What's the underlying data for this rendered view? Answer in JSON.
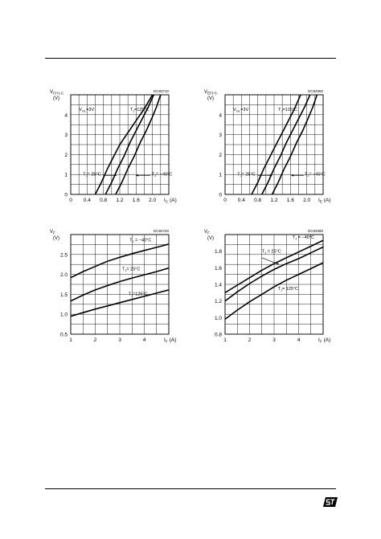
{
  "brand": {
    "logo": "ST"
  },
  "chart_data": [
    {
      "type": "line",
      "id": "GC82710",
      "title": "",
      "ylabel_lines": [
        "V",
        "(V)"
      ],
      "ylabel_sub": "F(+)-C",
      "xlabel": "I",
      "xlabel_sub": "C",
      "xunit": "(A)",
      "xlim": [
        0,
        2.4
      ],
      "ylim": [
        0,
        5
      ],
      "xticks": [
        0,
        0.4,
        0.8,
        1.2,
        1.6,
        2.0
      ],
      "xticklabels": [
        "0",
        "0.4",
        "0.8",
        "1.2",
        "1.6",
        "2.0"
      ],
      "yticks": [
        0,
        1,
        2,
        3,
        4
      ],
      "yticklabels": [
        "0",
        "1",
        "2",
        "3",
        "4"
      ],
      "grid": true,
      "annotations": [
        {
          "id": "cond",
          "text": "V",
          "sub": "GL",
          "after": "=3V",
          "x": 0.2,
          "y": 4.2
        },
        {
          "id": "t125",
          "text": "T",
          "sub": "J",
          "after": "=125°C",
          "x": 1.45,
          "y": 4.2
        },
        {
          "id": "t25",
          "text": "T",
          "sub": "J",
          "after": "= 25°C",
          "x": 0.3,
          "y": 0.95
        },
        {
          "id": "tm40",
          "text": "T",
          "sub": "J",
          "after": "= −40°C",
          "x": 1.98,
          "y": 0.95
        }
      ],
      "series": [
        {
          "name": "T_J = 125°C",
          "x": [
            0.6,
            0.75,
            0.9,
            1.05,
            1.2,
            1.4,
            1.6,
            1.8,
            2.0
          ],
          "y": [
            0,
            0.6,
            1.3,
            1.9,
            2.5,
            3.1,
            3.7,
            4.3,
            5.0
          ]
        },
        {
          "name": "T_J = 25°C",
          "x": [
            0.85,
            1.0,
            1.15,
            1.3,
            1.45,
            1.6,
            1.75,
            1.9,
            2.03
          ],
          "y": [
            0,
            0.6,
            1.3,
            1.9,
            2.6,
            3.2,
            3.8,
            4.4,
            5.0
          ]
        },
        {
          "name": "T_J = −40°C",
          "x": [
            1.1,
            1.25,
            1.4,
            1.55,
            1.7,
            1.85,
            2.0,
            2.1,
            2.2
          ],
          "y": [
            0,
            0.6,
            1.3,
            1.9,
            2.6,
            3.2,
            3.9,
            4.4,
            5.0
          ]
        }
      ],
      "leaders": [
        {
          "from": [
            0.8,
            0.95
          ],
          "to": [
            1.12,
            0.95
          ]
        },
        {
          "from": [
            1.95,
            0.95
          ],
          "to": [
            1.6,
            0.95
          ]
        }
      ]
    },
    {
      "type": "line",
      "id": "GC83360",
      "title": "",
      "ylabel_lines": [
        "V",
        "(V)"
      ],
      "ylabel_sub": "EF(+)-",
      "xlabel": "I",
      "xlabel_sub": "E",
      "xunit": "(A)",
      "xlim": [
        0,
        2.4
      ],
      "ylim": [
        0,
        5
      ],
      "xticks": [
        0,
        0.4,
        0.8,
        1.2,
        1.6,
        2.0
      ],
      "xticklabels": [
        "0",
        "0.4",
        "0.8",
        "1.2",
        "1.6",
        "2.0"
      ],
      "yticks": [
        0,
        1,
        2,
        3,
        4
      ],
      "yticklabels": [
        "0",
        "1",
        "2",
        "3",
        "4"
      ],
      "grid": true,
      "annotations": [
        {
          "id": "cond",
          "text": "V",
          "sub": "GL",
          "after": "=3V",
          "x": 0.2,
          "y": 4.2
        },
        {
          "id": "t125",
          "text": "T",
          "sub": "J",
          "after": "=125°C",
          "x": 1.3,
          "y": 4.2
        },
        {
          "id": "t25",
          "text": "T",
          "sub": "J",
          "after": "= 25°C",
          "x": 0.3,
          "y": 0.95
        },
        {
          "id": "tm40",
          "text": "T",
          "sub": "J",
          "after": "= −40°C",
          "x": 1.95,
          "y": 0.95
        }
      ],
      "series": [
        {
          "name": "T_J = 125°C",
          "x": [
            0.65,
            0.8,
            0.95,
            1.1,
            1.25,
            1.4,
            1.55,
            1.7,
            1.85
          ],
          "y": [
            0,
            0.6,
            1.3,
            1.9,
            2.5,
            3.1,
            3.7,
            4.3,
            5.0
          ]
        },
        {
          "name": "T_J = 25°C",
          "x": [
            0.9,
            1.05,
            1.2,
            1.35,
            1.5,
            1.65,
            1.8,
            1.95,
            2.08
          ],
          "y": [
            0,
            0.6,
            1.3,
            1.9,
            2.6,
            3.2,
            3.8,
            4.4,
            5.0
          ]
        },
        {
          "name": "T_J = −40°C",
          "x": [
            1.15,
            1.3,
            1.45,
            1.6,
            1.75,
            1.9,
            2.05,
            2.15,
            2.25
          ],
          "y": [
            0,
            0.6,
            1.3,
            1.9,
            2.6,
            3.2,
            3.9,
            4.4,
            5.0
          ]
        }
      ],
      "leaders": [
        {
          "from": [
            0.8,
            0.95
          ],
          "to": [
            1.15,
            0.95
          ]
        },
        {
          "from": [
            1.93,
            0.95
          ],
          "to": [
            1.62,
            0.95
          ]
        }
      ]
    },
    {
      "type": "line",
      "id": "GC82720",
      "title": "",
      "ylabel_lines": [
        "V",
        "(V)"
      ],
      "ylabel_sub": "F",
      "xlabel": "I",
      "xlabel_sub": "F",
      "xunit": "(A)",
      "xlim": [
        1,
        5
      ],
      "ylim": [
        0.5,
        3.0
      ],
      "xticks": [
        1,
        2,
        3,
        4
      ],
      "xticklabels": [
        "1",
        "2",
        "3",
        "4"
      ],
      "yticks": [
        0.5,
        1.0,
        1.5,
        2.0,
        2.5
      ],
      "yticklabels": [
        "0.5",
        "1.0",
        "1.5",
        "2.0",
        "2.5"
      ],
      "grid": true,
      "annotations": [
        {
          "id": "tm40",
          "text": "T",
          "sub": "J",
          "after": " = −40°C",
          "x": 3.4,
          "y": 2.83
        },
        {
          "id": "t25",
          "text": "T",
          "sub": "J",
          "after": "= 25°C",
          "x": 3.1,
          "y": 2.1
        },
        {
          "id": "t125",
          "text": "T",
          "sub": "J",
          "after": "=125°C",
          "x": 3.35,
          "y": 1.48
        }
      ],
      "series": [
        {
          "name": "T_J = −40°C",
          "x": [
            1,
            1.5,
            2,
            2.5,
            3,
            3.5,
            4,
            4.5,
            5
          ],
          "y": [
            1.92,
            2.07,
            2.2,
            2.33,
            2.43,
            2.52,
            2.6,
            2.68,
            2.76
          ]
        },
        {
          "name": "T_J = 25°C",
          "x": [
            1,
            1.5,
            2,
            2.5,
            3,
            3.5,
            4,
            4.5,
            5
          ],
          "y": [
            1.33,
            1.48,
            1.61,
            1.72,
            1.82,
            1.91,
            1.99,
            2.07,
            2.16
          ]
        },
        {
          "name": "T_J = 125°C",
          "x": [
            1,
            1.5,
            2,
            2.5,
            3,
            3.5,
            4,
            4.5,
            5
          ],
          "y": [
            0.95,
            1.04,
            1.13,
            1.21,
            1.29,
            1.37,
            1.45,
            1.53,
            1.61
          ]
        }
      ],
      "leaders": []
    },
    {
      "type": "line",
      "id": "GC83390",
      "title": "",
      "ylabel_lines": [
        "V",
        "(V)"
      ],
      "ylabel_sub": "F",
      "xlabel": "I",
      "xlabel_sub": "F",
      "xunit": "(A)",
      "xlim": [
        1,
        5
      ],
      "ylim": [
        0.8,
        2.0
      ],
      "xticks": [
        1,
        2,
        3,
        4
      ],
      "xticklabels": [
        "1",
        "2",
        "3",
        "4"
      ],
      "yticks": [
        0.8,
        1.0,
        1.2,
        1.4,
        1.6,
        1.8
      ],
      "yticklabels": [
        "0.8",
        "1.0",
        "1.2",
        "1.4",
        "1.6",
        "1.8"
      ],
      "grid": true,
      "annotations": [
        {
          "id": "tm40",
          "text": "T",
          "sub": "J",
          "after": " = −40°C",
          "x": 3.75,
          "y": 1.95
        },
        {
          "id": "t25",
          "text": "T",
          "sub": "J",
          "after": " = 25°C",
          "x": 2.5,
          "y": 1.78
        },
        {
          "id": "t125",
          "text": "T",
          "sub": "J",
          "after": "= 125°C",
          "x": 3.15,
          "y": 1.33
        }
      ],
      "series": [
        {
          "name": "T_J = −40°C",
          "x": [
            1,
            1.5,
            2,
            2.5,
            3,
            3.5,
            4,
            4.5,
            5
          ],
          "y": [
            1.3,
            1.39,
            1.48,
            1.57,
            1.65,
            1.72,
            1.79,
            1.86,
            1.93
          ]
        },
        {
          "name": "T_J = 25°C",
          "x": [
            1,
            1.5,
            2,
            2.5,
            3,
            3.5,
            4,
            4.5,
            5
          ],
          "y": [
            1.2,
            1.31,
            1.41,
            1.5,
            1.58,
            1.65,
            1.71,
            1.78,
            1.85
          ]
        },
        {
          "name": "T_J = 125°C",
          "x": [
            1,
            1.5,
            2,
            2.5,
            3,
            3.5,
            4,
            4.5,
            5
          ],
          "y": [
            0.98,
            1.09,
            1.19,
            1.28,
            1.37,
            1.45,
            1.52,
            1.59,
            1.66
          ]
        }
      ],
      "leaders": [
        {
          "from": [
            2.5,
            1.72
          ],
          "to": [
            3.2,
            1.64
          ]
        }
      ]
    }
  ]
}
